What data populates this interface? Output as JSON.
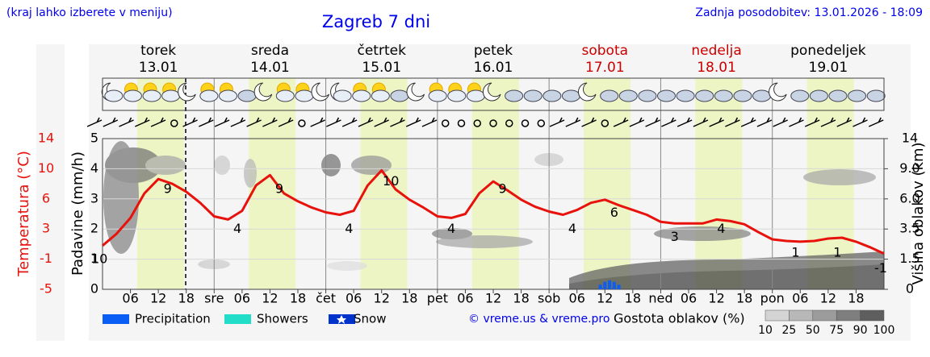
{
  "header": {
    "hint": "(kraj lahko izberete v meniju)",
    "updated": "Zadnja posodobitev: 13.01.2026 - 18:09"
  },
  "chart_data": {
    "type": "line",
    "title": "Zagreb 7 dni",
    "days": [
      {
        "name": "torek",
        "date": "13.01",
        "color": "#000000"
      },
      {
        "name": "sreda",
        "date": "14.01",
        "color": "#000000"
      },
      {
        "name": "četrtek",
        "date": "15.01",
        "color": "#000000"
      },
      {
        "name": "petek",
        "date": "16.01",
        "color": "#000000"
      },
      {
        "name": "sobota",
        "date": "17.01",
        "color": "#cc0000"
      },
      {
        "name": "nedelja",
        "date": "18.01",
        "color": "#cc0000"
      },
      {
        "name": "ponedeljek",
        "date": "19.01",
        "color": "#000000"
      }
    ],
    "xlim": [
      0,
      168
    ],
    "xticks": [
      {
        "value": 6,
        "label": "06"
      },
      12,
      18,
      {
        "value": 24,
        "label": "sre"
      },
      {
        "value": 30,
        "label": "06"
      },
      {
        "value": 36,
        "label": "12"
      },
      {
        "value": 42,
        "label": "18"
      },
      {
        "value": 48,
        "label": "čet"
      },
      {
        "value": 54,
        "label": "06"
      },
      {
        "value": 60,
        "label": "12"
      },
      {
        "value": 66,
        "label": "18"
      },
      {
        "value": 72,
        "label": "pet"
      },
      {
        "value": 78,
        "label": "06"
      },
      {
        "value": 84,
        "label": "12"
      },
      {
        "value": 90,
        "label": "18"
      },
      {
        "value": 96,
        "label": "sob"
      },
      {
        "value": 102,
        "label": "06"
      },
      {
        "value": 108,
        "label": "12"
      },
      {
        "value": 114,
        "label": "18"
      },
      {
        "value": 120,
        "label": "ned"
      },
      {
        "value": 126,
        "label": "06"
      },
      {
        "value": 132,
        "label": "12"
      },
      {
        "value": 138,
        "label": "18"
      },
      {
        "value": 144,
        "label": "pon"
      },
      {
        "value": 150,
        "label": "06"
      },
      {
        "value": 156,
        "label": "12"
      },
      {
        "value": 162,
        "label": "18"
      }
    ],
    "ylabel": "Padavine (mm/h)",
    "ylim": [
      0,
      5
    ],
    "yticks": [
      0,
      1,
      2,
      3,
      4,
      5
    ],
    "y2label": "Temperatura (°C)",
    "y2lim": [
      -5,
      14
    ],
    "y2ticks": [
      -5,
      {
        "value": -1.2,
        "label": "-1"
      },
      {
        "value": 2.6,
        "label": "3"
      },
      {
        "value": 6.4,
        "label": "6"
      },
      {
        "value": 10.2,
        "label": "10"
      },
      14
    ],
    "y3label": "Višina oblakov (km)",
    "y3lim": [
      0,
      14
    ],
    "y3ticks": [
      0,
      1.5,
      3.5,
      {
        "value": 6,
        "label": "6.0"
      },
      {
        "value": 9,
        "label": "9.0"
      },
      14
    ],
    "series": [
      {
        "name": "Temperatura",
        "color": "#e8120c",
        "axis": "y2",
        "x": [
          0,
          3,
          6,
          9,
          12,
          15,
          18,
          21,
          24,
          27,
          30,
          33,
          36,
          39,
          42,
          45,
          48,
          51,
          54,
          57,
          60,
          63,
          66,
          69,
          72,
          75,
          78,
          81,
          84,
          87,
          90,
          93,
          96,
          99,
          102,
          105,
          108,
          111,
          114,
          117,
          120,
          123,
          126,
          129,
          132,
          135,
          138,
          141,
          144,
          147,
          150,
          153,
          156,
          159,
          162,
          165,
          168
        ],
        "values": [
          0.5,
          2.0,
          4.0,
          7.1,
          8.9,
          8.3,
          7.3,
          5.9,
          4.2,
          3.8,
          4.9,
          8.1,
          9.4,
          7.1,
          6.1,
          5.3,
          4.7,
          4.4,
          4.9,
          8.1,
          10.0,
          7.6,
          6.3,
          5.3,
          4.2,
          4.0,
          4.5,
          7.1,
          8.6,
          7.5,
          6.3,
          5.4,
          4.8,
          4.4,
          5.0,
          5.9,
          6.3,
          5.6,
          5.0,
          4.4,
          3.5,
          3.3,
          3.3,
          3.3,
          3.8,
          3.6,
          3.2,
          2.2,
          1.3,
          1.1,
          1.0,
          1.1,
          1.4,
          1.5,
          1.0,
          0.3,
          -0.5
        ]
      }
    ],
    "annotations": [
      {
        "x": 14,
        "value": 9
      },
      {
        "x": 29,
        "value": 4
      },
      {
        "x": 38,
        "value": 9
      },
      {
        "x": 53,
        "value": 4
      },
      {
        "x": 62,
        "value": 10
      },
      {
        "x": 75,
        "value": 4
      },
      {
        "x": 86,
        "value": 9
      },
      {
        "x": 101,
        "value": 4
      },
      {
        "x": 110,
        "value": 6
      },
      {
        "x": 123,
        "value": 3
      },
      {
        "x": 133,
        "value": 4
      },
      {
        "x": 149,
        "value": 1
      },
      {
        "x": 158,
        "value": 1
      },
      {
        "x": 168,
        "value": -1
      }
    ],
    "base_label": 10,
    "precipitation": {
      "color": "#0a5ef5",
      "x": [
        107,
        108,
        109,
        110,
        111
      ],
      "values": [
        0.15,
        0.25,
        0.3,
        0.25,
        0.15
      ]
    },
    "legend": [
      {
        "name": "Precipitation",
        "color": "#0a5ef5"
      },
      {
        "name": "Showers",
        "color": "#22ddc8"
      },
      {
        "name": "Snow",
        "color": "#0033cc"
      }
    ],
    "credit": "© vreme.us & vreme.pro",
    "cloud_scale": {
      "label": "Gostota oblakov (%)",
      "ticks": [
        10,
        25,
        50,
        75,
        90,
        100
      ]
    }
  }
}
